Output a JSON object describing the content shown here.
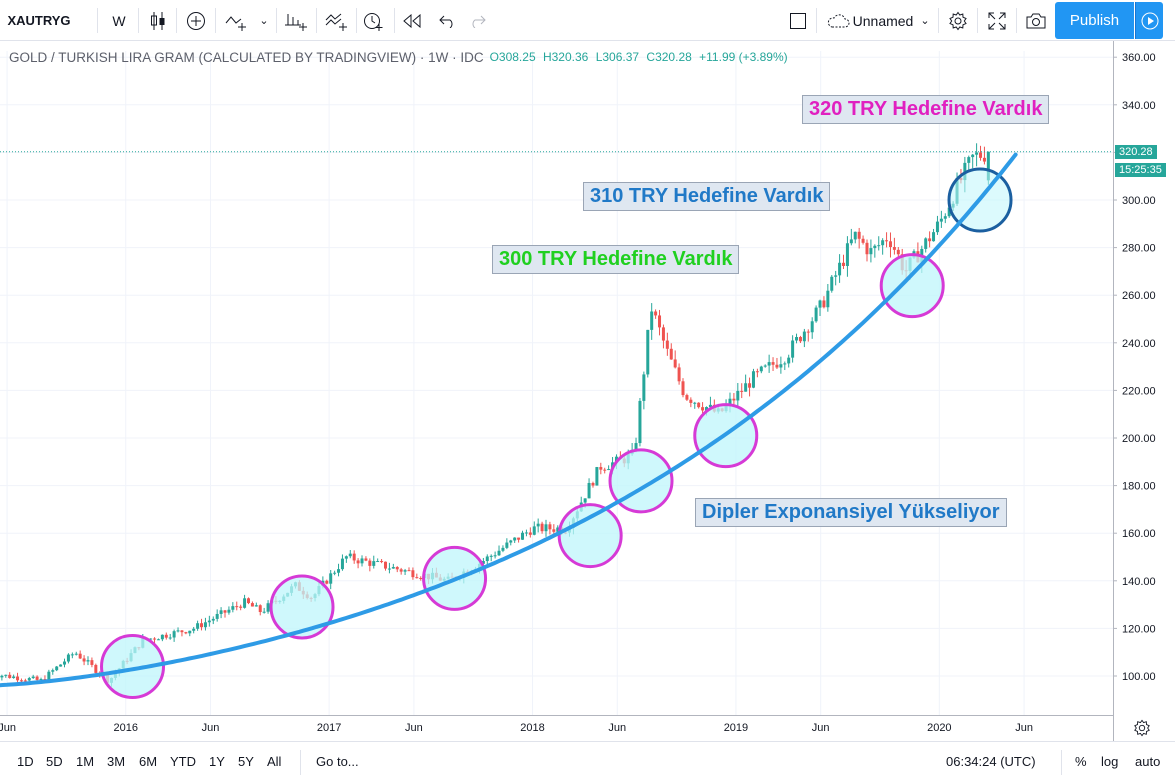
{
  "toolbar": {
    "symbol": "XAUTRYG",
    "interval": "W",
    "layout_name": "Unnamed",
    "publish_label": "Publish",
    "icons": [
      "candles-icon",
      "add-indicator-icon",
      "compare-icon",
      "indicators-icon",
      "templates-icon",
      "alert-icon",
      "replay-icon",
      "undo-icon",
      "redo-icon",
      "layout-square-icon",
      "cloud-icon",
      "settings-icon",
      "fullscreen-icon",
      "camera-icon",
      "play-icon"
    ]
  },
  "legend": {
    "title": "GOLD / TURKISH LIRA GRAM (CALCULATED BY TRADINGVIEW) · 1W · IDC",
    "open": "O308.25",
    "high": "H320.36",
    "low": "L306.37",
    "close": "C320.28",
    "change": "+11.99 (+3.89%)"
  },
  "annotations": {
    "a320": "320 TRY Hedefine Vardık",
    "a310": "310 TRY Hedefine Vardık",
    "a300": "300 TRY Hedefine Vardık",
    "dipler": "Dipler Exponansiyel Yükseliyor"
  },
  "price_axis": {
    "last_price": "320.28",
    "countdown": "15:25:35",
    "last_price_color": "#26a69a"
  },
  "bottom": {
    "ranges": [
      "1D",
      "5D",
      "1M",
      "3M",
      "6M",
      "YTD",
      "1Y",
      "5Y",
      "All"
    ],
    "goto": "Go to...",
    "time": "06:34:24 (UTC)",
    "percent": "%",
    "log": "log",
    "auto": "auto"
  },
  "colors": {
    "up": "#26a69a",
    "down": "#ef5350",
    "trend": "#2e9be6",
    "circle_stroke": "#d63ad6",
    "circle_fill": "#bff6fb",
    "a320": "#e020c0",
    "a310": "#2079c7",
    "a300": "#20d020",
    "dipler": "#2079c7"
  },
  "chart_data": {
    "type": "candlestick",
    "title": "GOLD / TURKISH LIRA GRAM (CALCULATED BY TRADINGVIEW)",
    "interval": "1W",
    "y_axis": {
      "ticks": [
        100,
        120,
        140,
        160,
        180,
        200,
        220,
        240,
        260,
        280,
        300,
        320,
        340,
        360
      ],
      "ylim": [
        86,
        366
      ]
    },
    "x_axis": {
      "ticks": [
        "Jun",
        "2016",
        "Jun",
        "2017",
        "Jun",
        "2018",
        "Jun",
        "2019",
        "Jun",
        "2020",
        "Jun"
      ]
    },
    "anchors": [
      [
        "2015-05",
        101
      ],
      [
        "2015-08",
        98
      ],
      [
        "2015-10",
        110
      ],
      [
        "2015-12",
        98
      ],
      [
        "2016-02",
        115
      ],
      [
        "2016-05",
        120
      ],
      [
        "2016-08",
        131
      ],
      [
        "2016-09",
        127
      ],
      [
        "2016-11",
        138
      ],
      [
        "2016-12",
        133
      ],
      [
        "2017-02",
        150
      ],
      [
        "2017-05",
        145
      ],
      [
        "2017-08",
        140
      ],
      [
        "2017-10",
        148
      ],
      [
        "2018-01",
        162
      ],
      [
        "2018-03",
        162
      ],
      [
        "2018-05",
        188
      ],
      [
        "2018-06",
        190
      ],
      [
        "2018-07",
        193
      ],
      [
        "2018-08",
        255
      ],
      [
        "2018-09",
        235
      ],
      [
        "2018-10",
        218
      ],
      [
        "2018-12",
        210
      ],
      [
        "2019-02",
        225
      ],
      [
        "2019-04",
        235
      ],
      [
        "2019-06",
        255
      ],
      [
        "2019-08",
        285
      ],
      [
        "2019-09",
        278
      ],
      [
        "2019-10",
        285
      ],
      [
        "2019-11",
        270
      ],
      [
        "2020-01",
        290
      ],
      [
        "2020-02",
        305
      ],
      [
        "2020-03",
        318
      ],
      [
        "2020-04",
        320.28
      ]
    ],
    "last_candle": {
      "open": 308.25,
      "high": 320.36,
      "low": 306.37,
      "close": 320.28
    },
    "trendline": "exponential lower support from ~96 (Jun 2015) to ~320 (May 2020)",
    "highlighted_lows": [
      "2016-01",
      "2016-11",
      "2017-08",
      "2018-04",
      "2018-07",
      "2018-12",
      "2019-11",
      "2020-03"
    ],
    "annotations": [
      "320 TRY Hedefine Vardık",
      "310 TRY Hedefine Vardık",
      "300 TRY Hedefine Vardık",
      "Dipler Exponansiyel Yükseliyor"
    ]
  }
}
